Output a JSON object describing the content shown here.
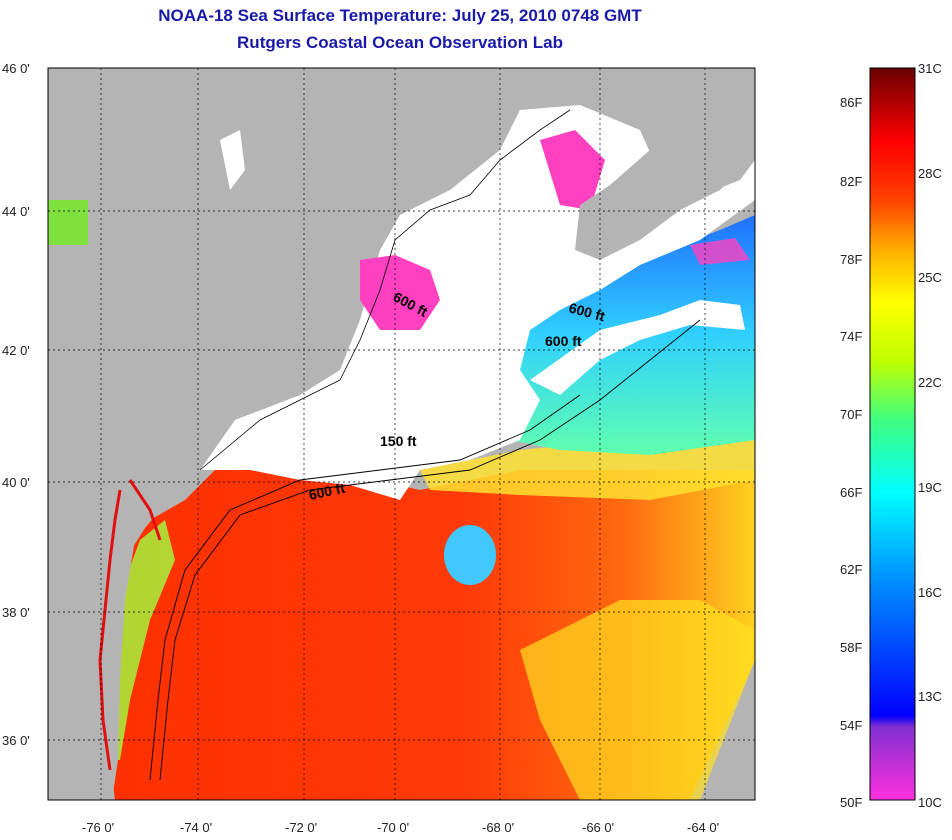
{
  "header": {
    "title": "NOAA-18 Sea Surface Temperature:  July 25, 2010 0748 GMT",
    "subtitle": "Rutgers Coastal Ocean Observation Lab"
  },
  "map": {
    "lat_labels": [
      "46 0'",
      "44 0'",
      "42 0'",
      "40 0'",
      "38 0'",
      "36 0'"
    ],
    "lon_labels": [
      "-76 0'",
      "-74 0'",
      "-72 0'",
      "-70 0'",
      "-68 0'",
      "-66 0'",
      "-64 0'"
    ],
    "contour_labels": [
      "600 ft",
      "600 ft",
      "600 ft",
      "150 ft",
      "600 ft"
    ],
    "colors": {
      "land": "#b4b4b4",
      "cloud": "#ffffff",
      "warm": "#ff3010",
      "cool": "#30d0ff"
    }
  },
  "colorbar": {
    "top_left": "",
    "fahrenheit": [
      "86F",
      "82F",
      "78F",
      "74F",
      "70F",
      "66F",
      "62F",
      "58F",
      "54F",
      "50F"
    ],
    "celsius": [
      "31C",
      "28C",
      "25C",
      "22C",
      "19C",
      "16C",
      "13C",
      "10C"
    ]
  }
}
